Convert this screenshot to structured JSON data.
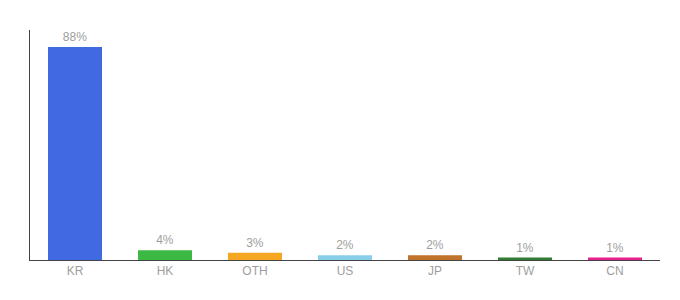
{
  "chart_data": {
    "type": "bar",
    "categories": [
      "KR",
      "HK",
      "OTH",
      "US",
      "JP",
      "TW",
      "CN"
    ],
    "values": [
      88,
      4,
      3,
      2,
      2,
      1,
      1
    ],
    "value_labels": [
      "88%",
      "4%",
      "3%",
      "2%",
      "2%",
      "1%",
      "1%"
    ],
    "data_labels": true,
    "colors": [
      "#4169e1",
      "#3cb844",
      "#f5a623",
      "#87ceeb",
      "#c0732a",
      "#2e7d32",
      "#e91e8c"
    ],
    "ylim": [
      0,
      95
    ],
    "grid": false,
    "tick_labels": "x"
  }
}
